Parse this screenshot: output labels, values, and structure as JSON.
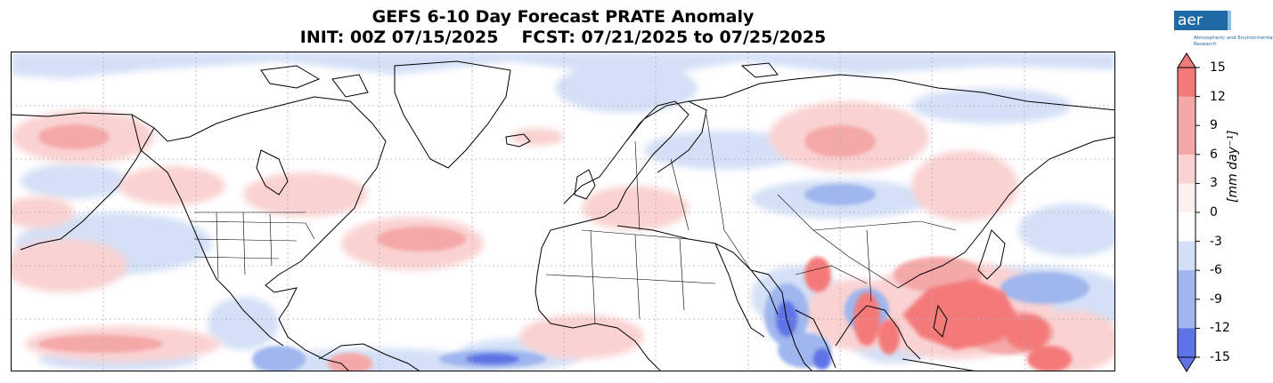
{
  "title": {
    "line1": "GEFS 6-10 Day Forecast PRATE Anomaly",
    "init": "INIT: 00Z 07/15/2025",
    "fcst": "FCST: 07/21/2025 to 07/25/2025"
  },
  "logo": {
    "text": "aer",
    "subtitle": "Atmospheric and Environmental Research"
  },
  "colorbar": {
    "label": "[mm day⁻¹]",
    "ticks": [
      "15",
      "12",
      "9",
      "6",
      "3",
      "0",
      "-3",
      "-6",
      "-9",
      "-12",
      "-15"
    ],
    "levels": [
      15,
      12,
      9,
      6,
      3,
      0,
      -3,
      -6,
      -9,
      -12,
      -15
    ],
    "colors": {
      "positive_strong": "#f47a7a",
      "positive_medium": "#f5a8a8",
      "positive_light": "#fad2d2",
      "negative_light": "#d4e0f7",
      "negative_medium": "#9fb6ee",
      "negative_strong": "#5f73e6"
    }
  },
  "map": {
    "projection": "global equirectangular",
    "gridlines": true,
    "features": [
      "coastlines",
      "country-borders",
      "us-state-borders"
    ]
  }
}
